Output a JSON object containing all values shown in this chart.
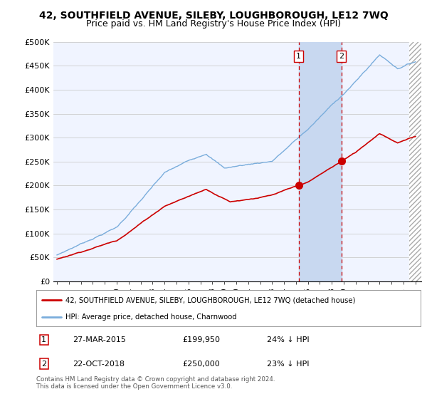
{
  "title": "42, SOUTHFIELD AVENUE, SILEBY, LOUGHBOROUGH, LE12 7WQ",
  "subtitle": "Price paid vs. HM Land Registry's House Price Index (HPI)",
  "title_fontsize": 10,
  "subtitle_fontsize": 9,
  "ylabel_ticks": [
    "£0",
    "£50K",
    "£100K",
    "£150K",
    "£200K",
    "£250K",
    "£300K",
    "£350K",
    "£400K",
    "£450K",
    "£500K"
  ],
  "ytick_values": [
    0,
    50000,
    100000,
    150000,
    200000,
    250000,
    300000,
    350000,
    400000,
    450000,
    500000
  ],
  "ylim": [
    0,
    500000
  ],
  "xlim_start": 1994.7,
  "xlim_end": 2025.5,
  "hpi_color": "#7aaddc",
  "price_color": "#cc0000",
  "vline_color": "#cc0000",
  "bg_color": "#f0f4ff",
  "shade_color": "#c8d8f0",
  "hatch_color": "#cccccc",
  "transaction_1_year": 2015.23,
  "transaction_2_year": 2018.8,
  "hatch_start": 2024.5,
  "footnote": "Contains HM Land Registry data © Crown copyright and database right 2024.\nThis data is licensed under the Open Government Licence v3.0.",
  "legend_line1": "42, SOUTHFIELD AVENUE, SILEBY, LOUGHBOROUGH, LE12 7WQ (detached house)",
  "legend_line2": "HPI: Average price, detached house, Charnwood",
  "table_row1_num": "1",
  "table_row1_date": "27-MAR-2015",
  "table_row1_price": "£199,950",
  "table_row1_hpi": "24% ↓ HPI",
  "table_row2_num": "2",
  "table_row2_date": "22-OCT-2018",
  "table_row2_price": "£250,000",
  "table_row2_hpi": "23% ↓ HPI"
}
